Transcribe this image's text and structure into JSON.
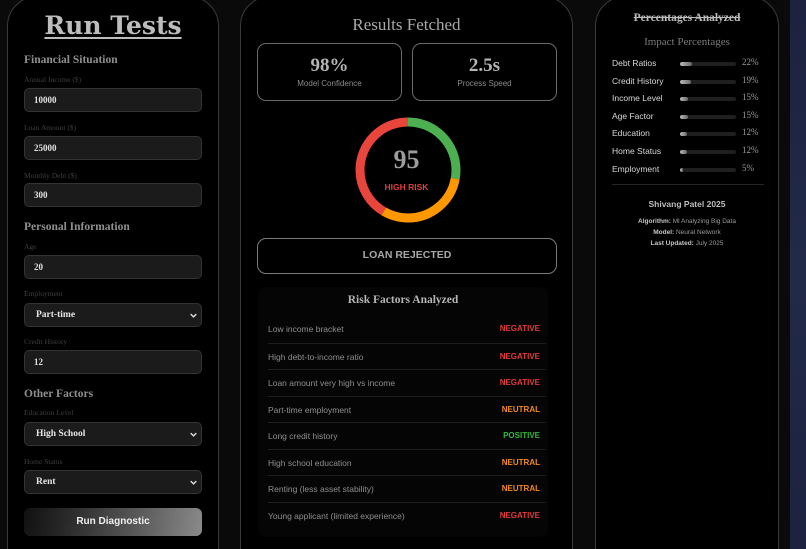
{
  "form": {
    "title": "Run Tests",
    "sections": {
      "financial": "Financial Situation",
      "personal": "Personal Information",
      "other": "Other Factors"
    },
    "fields": {
      "annual_income": {
        "label": "Annual Income ($)",
        "value": "10000"
      },
      "loan_amount": {
        "label": "Loan Amount ($)",
        "value": "25000"
      },
      "monthly_debt": {
        "label": "Monthly Debt ($)",
        "value": "300"
      },
      "age": {
        "label": "Age",
        "value": "20"
      },
      "employment": {
        "label": "Employment",
        "value": "Part-time"
      },
      "credit_history": {
        "label": "Credit History",
        "value": "12"
      },
      "education": {
        "label": "Education Level",
        "value": "High School"
      },
      "home_status": {
        "label": "Home Status",
        "value": "Rent"
      }
    },
    "run_button": "Run Diagnostic"
  },
  "results": {
    "title": "Results Fetched",
    "metrics": [
      {
        "value": "98%",
        "label": "Model Confidence"
      },
      {
        "value": "2.5s",
        "label": "Process Speed"
      }
    ],
    "gauge": {
      "score": "95",
      "risk_label": "HIGH RISK",
      "colors": {
        "red": "#e8453c",
        "green": "#4caf50",
        "orange": "#ff9800"
      }
    },
    "decision": "LOAN REJECTED",
    "factors_title": "Risk Factors Analyzed",
    "factors": [
      {
        "name": "Low income bracket",
        "status": "NEGATIVE"
      },
      {
        "name": "High debt-to-income ratio",
        "status": "NEGATIVE"
      },
      {
        "name": "Loan amount very high vs income",
        "status": "NEGATIVE"
      },
      {
        "name": "Part-time employment",
        "status": "NEUTRAL"
      },
      {
        "name": "Long credit history",
        "status": "POSITIVE"
      },
      {
        "name": "High school education",
        "status": "NEUTRAL"
      },
      {
        "name": "Renting (less asset stability)",
        "status": "NEUTRAL"
      },
      {
        "name": "Young applicant (limited experience)",
        "status": "NEGATIVE"
      }
    ],
    "status_colors": {
      "NEGATIVE": "#e03b3b",
      "NEUTRAL": "#f08a24",
      "POSITIVE": "#2fb83a"
    }
  },
  "percentages": {
    "title": "Percentages Analyzed",
    "subtitle": "Impact Percentages",
    "items": [
      {
        "label": "Debt Ratios",
        "value": "22%",
        "pct": 22
      },
      {
        "label": "Credit History",
        "value": "19%",
        "pct": 19
      },
      {
        "label": "Income Level",
        "value": "15%",
        "pct": 15
      },
      {
        "label": "Age Factor",
        "value": "15%",
        "pct": 15
      },
      {
        "label": "Education",
        "value": "12%",
        "pct": 12
      },
      {
        "label": "Home Status",
        "value": "12%",
        "pct": 12
      },
      {
        "label": "Employment",
        "value": "5%",
        "pct": 5
      }
    ],
    "author": "Shivang Patel 2025",
    "meta": [
      {
        "key": "Algorithm:",
        "value": "Ml Analyzing Big Data"
      },
      {
        "key": "Model:",
        "value": "Neural Network"
      },
      {
        "key": "Last Updated:",
        "value": "July 2025"
      }
    ]
  }
}
